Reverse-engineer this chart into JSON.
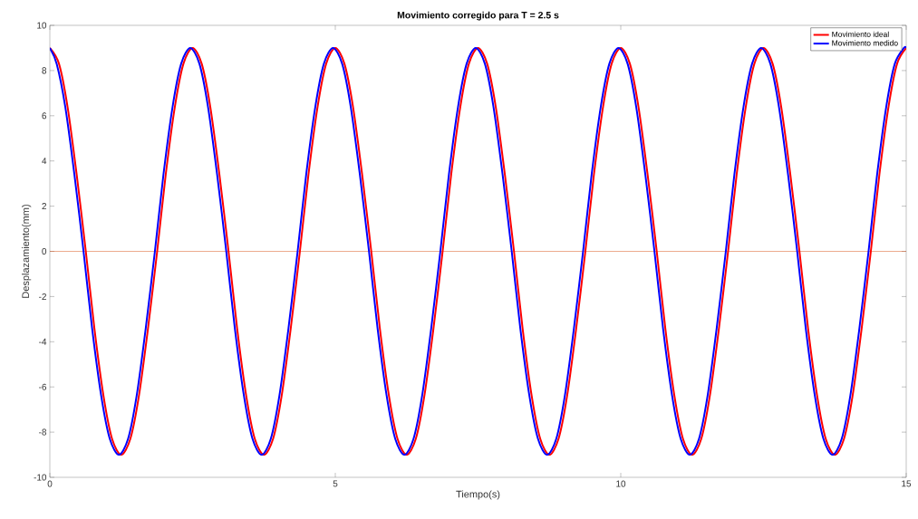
{
  "chart_data": {
    "type": "line",
    "title": "Movimiento corregido para T = 2.5 s",
    "xlabel": "Tiempo(s)",
    "ylabel": "Desplazamiento(mm)",
    "xlim": [
      0,
      15
    ],
    "ylim": [
      -10,
      10
    ],
    "xticks": [
      0,
      5,
      10,
      15
    ],
    "yticks": [
      -10,
      -8,
      -6,
      -4,
      -2,
      0,
      2,
      4,
      6,
      8,
      10
    ],
    "grid": false,
    "legend": "top right",
    "marker": "none",
    "line_style": "solid",
    "ref_lines": [
      {
        "axis": "y",
        "value": 0,
        "color": "#d95319"
      }
    ],
    "series": [
      {
        "name": "Movimiento ideal",
        "color": "#ff0000",
        "x": [
          0,
          0.16,
          0.31,
          0.47,
          0.63,
          0.78,
          0.94,
          1.09,
          1.25,
          1.41,
          1.56,
          1.72,
          1.88,
          2.03,
          2.19,
          2.34,
          2.5,
          2.66,
          2.81,
          2.97,
          3.13,
          3.28,
          3.44,
          3.59,
          3.75,
          3.91,
          4.06,
          4.22,
          4.38,
          4.53,
          4.69,
          4.84,
          5,
          5.16,
          5.31,
          5.47,
          5.63,
          5.78,
          5.94,
          6.09,
          6.25,
          6.41,
          6.56,
          6.72,
          6.88,
          7.03,
          7.19,
          7.34,
          7.5,
          7.66,
          7.81,
          7.97,
          8.13,
          8.28,
          8.44,
          8.59,
          8.75,
          8.91,
          9.06,
          9.22,
          9.38,
          9.53,
          9.69,
          9.84,
          10,
          10.16,
          10.31,
          10.47,
          10.63,
          10.78,
          10.94,
          11.09,
          11.25,
          11.41,
          11.56,
          11.72,
          11.88,
          12.03,
          12.19,
          12.34,
          12.5,
          12.66,
          12.81,
          12.97,
          13.13,
          13.28,
          13.44,
          13.59,
          13.75,
          13.91,
          14.06,
          14.22,
          14.38,
          14.53,
          14.69,
          14.84,
          15
        ],
        "values": [
          9,
          8.3,
          6.4,
          3.4,
          0,
          -3.4,
          -6.4,
          -8.3,
          -9,
          -8.3,
          -6.4,
          -3.4,
          0,
          3.4,
          6.4,
          8.3,
          9,
          8.3,
          6.4,
          3.4,
          0,
          -3.4,
          -6.4,
          -8.3,
          -9,
          -8.3,
          -6.4,
          -3.4,
          0,
          3.4,
          6.4,
          8.3,
          9,
          8.3,
          6.4,
          3.4,
          0,
          -3.4,
          -6.4,
          -8.3,
          -9,
          -8.3,
          -6.4,
          -3.4,
          0,
          3.4,
          6.4,
          8.3,
          9,
          8.3,
          6.4,
          3.4,
          0,
          -3.4,
          -6.4,
          -8.3,
          -9,
          -8.3,
          -6.4,
          -3.4,
          0,
          3.4,
          6.4,
          8.3,
          9,
          8.3,
          6.4,
          3.4,
          0,
          -3.4,
          -6.4,
          -8.3,
          -9,
          -8.3,
          -6.4,
          -3.4,
          0,
          3.4,
          6.4,
          8.3,
          9,
          8.3,
          6.4,
          3.4,
          0,
          -3.4,
          -6.4,
          -8.3,
          -9,
          -8.3,
          -6.4,
          -3.4,
          0,
          3.4,
          6.4,
          8.3,
          9
        ]
      },
      {
        "name": "Movimiento medido",
        "color": "#0000ff",
        "x": [
          0,
          0.12,
          0.27,
          0.43,
          0.59,
          0.74,
          0.9,
          1.05,
          1.21,
          1.37,
          1.52,
          1.68,
          1.84,
          1.99,
          2.15,
          2.3,
          2.46,
          2.62,
          2.77,
          2.93,
          3.09,
          3.24,
          3.4,
          3.55,
          3.71,
          3.87,
          4.02,
          4.18,
          4.34,
          4.49,
          4.65,
          4.8,
          4.96,
          5.12,
          5.27,
          5.43,
          5.59,
          5.74,
          5.9,
          6.05,
          6.21,
          6.37,
          6.52,
          6.68,
          6.84,
          6.99,
          7.15,
          7.3,
          7.46,
          7.62,
          7.77,
          7.93,
          8.09,
          8.24,
          8.4,
          8.55,
          8.71,
          8.87,
          9.02,
          9.18,
          9.34,
          9.49,
          9.65,
          9.8,
          9.96,
          10.12,
          10.27,
          10.43,
          10.59,
          10.74,
          10.9,
          11.05,
          11.21,
          11.37,
          11.52,
          11.68,
          11.84,
          11.99,
          12.15,
          12.3,
          12.46,
          12.62,
          12.77,
          12.93,
          13.09,
          13.24,
          13.4,
          13.55,
          13.71,
          13.87,
          14.02,
          14.18,
          14.34,
          14.49,
          14.65,
          14.8,
          14.96,
          15
        ],
        "values": [
          9,
          8.3,
          6.4,
          3.4,
          0,
          -3.4,
          -6.4,
          -8.3,
          -9,
          -8.3,
          -6.4,
          -3.4,
          0,
          3.4,
          6.4,
          8.3,
          9,
          8.3,
          6.4,
          3.4,
          0,
          -3.4,
          -6.4,
          -8.3,
          -9,
          -8.3,
          -6.4,
          -3.4,
          0,
          3.4,
          6.4,
          8.3,
          9,
          8.3,
          6.4,
          3.4,
          0,
          -3.4,
          -6.4,
          -8.3,
          -9,
          -8.3,
          -6.4,
          -3.4,
          0,
          3.4,
          6.4,
          8.3,
          9,
          8.3,
          6.4,
          3.4,
          0,
          -3.4,
          -6.4,
          -8.3,
          -9,
          -8.3,
          -6.4,
          -3.4,
          0,
          3.4,
          6.4,
          8.3,
          9,
          8.3,
          6.4,
          3.4,
          0,
          -3.4,
          -6.4,
          -8.3,
          -9,
          -8.3,
          -6.4,
          -3.4,
          0,
          3.4,
          6.4,
          8.3,
          9,
          8.3,
          6.4,
          3.4,
          0,
          -3.4,
          -6.4,
          -8.3,
          -9,
          -8.3,
          -6.4,
          -3.4,
          0,
          3.4,
          6.4,
          8.3,
          9,
          9
        ]
      }
    ]
  }
}
